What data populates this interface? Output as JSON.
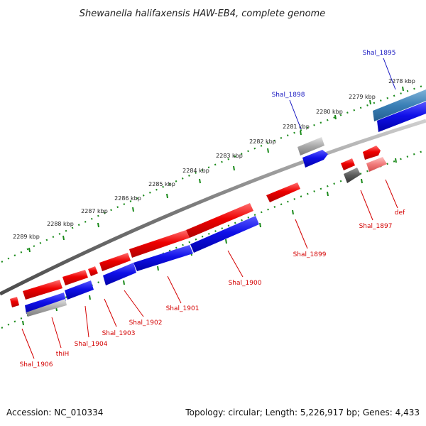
{
  "title": "Shewanella halifaxensis HAW-EB4, complete genome",
  "footer": {
    "accession": "Accession: NC_010334",
    "topology": "Topology: circular; Length: 5,226,917 bp; Genes: 4,433"
  },
  "scale_labels": [
    "2278 kbp",
    "2279 kbp",
    "2280 kbp",
    "2281 kbp",
    "2282 kbp",
    "2283 kbp",
    "2284 kbp",
    "2285 kbp",
    "2286 kbp",
    "2287 kbp",
    "2288 kbp",
    "2289 kbp"
  ],
  "gene_labels": {
    "shal_1895": "Shal_1895",
    "shal_1898": "Shal_1898",
    "shal_1897": "Shal_1897",
    "def": "def",
    "shal_1899": "Shal_1899",
    "shal_1900": "Shal_1900",
    "shal_1901": "Shal_1901",
    "shal_1902": "Shal_1902",
    "shal_1903": "Shal_1903",
    "shal_1904": "Shal_1904",
    "thih": "thiH",
    "shal_1906": "Shal_1906"
  },
  "colors": {
    "feature_red": "#e80000",
    "feature_blue": "#1414e0",
    "label_red": "#d40000",
    "label_blue": "#1515c0",
    "tick_green": "#1a8a1a",
    "backbone": "#707070"
  }
}
